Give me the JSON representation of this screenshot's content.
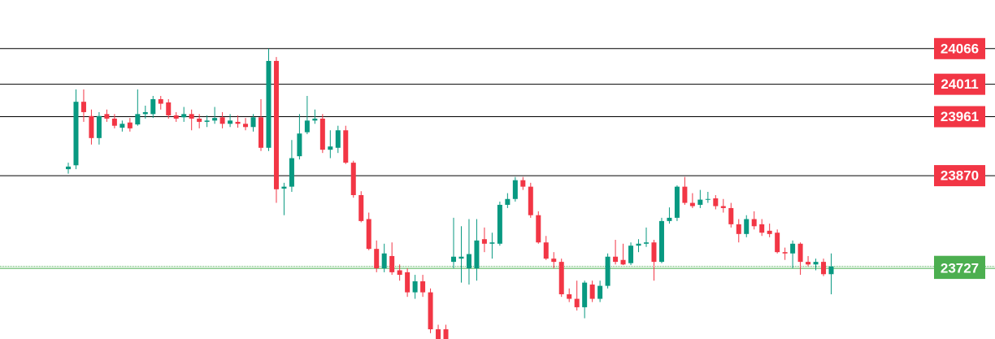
{
  "chart_data": {
    "type": "candlestick",
    "ylim": [
      23618,
      24141
    ],
    "up_color": "#089981",
    "down_color": "#f23645",
    "open": [
      23880,
      23886,
      23984,
      23962,
      23928,
      23965,
      23958,
      23944,
      23952,
      23949,
      23965,
      23965,
      23988,
      23983,
      23963,
      23960,
      23965,
      23958,
      23953,
      23955,
      23960,
      23950,
      23953,
      23950,
      23945,
      23960,
      23913,
      24047,
      23850,
      23853,
      23900,
      23937,
      23955,
      23958,
      23910,
      23913,
      23940,
      23890,
      23840,
      23803,
      23757,
      23727,
      23746,
      23724,
      23721,
      23690,
      23707,
      23690,
      23633,
      23633,
      23737,
      23742,
      23727,
      23727,
      23772,
      23765,
      23765,
      23825,
      23834,
      23863,
      23853,
      23809,
      23767,
      23742,
      23737,
      23687,
      23680,
      23667,
      23702,
      23680,
      23700,
      23745,
      23740,
      23735,
      23762,
      23765,
      23767,
      23737,
      23800,
      23805,
      23853,
      23828,
      23825,
      23833,
      23835,
      23823,
      23820,
      23795,
      23780,
      23803,
      23795,
      23785,
      23782,
      23752,
      23750,
      23765,
      23737,
      23733,
      23737,
      23718
    ],
    "high": [
      23890,
      24003,
      24003,
      23972,
      23968,
      23972,
      23965,
      23955,
      23959,
      24003,
      23978,
      23993,
      23993,
      23988,
      23968,
      23976,
      23972,
      23965,
      23963,
      23976,
      23968,
      23965,
      23963,
      23959,
      23965,
      23988,
      24066,
      24053,
      23859,
      23925,
      23965,
      23993,
      23972,
      23965,
      23940,
      23947,
      23947,
      23893,
      23846,
      23813,
      23770,
      23765,
      23767,
      23733,
      23727,
      23717,
      23717,
      23696,
      23640,
      23640,
      23805,
      23792,
      23803,
      23803,
      23790,
      23782,
      23830,
      23843,
      23868,
      23868,
      23859,
      23815,
      23777,
      23752,
      23742,
      23696,
      23708,
      23708,
      23708,
      23708,
      23750,
      23771,
      23765,
      23767,
      23772,
      23790,
      23771,
      23805,
      23821,
      23855,
      23868,
      23843,
      23848,
      23845,
      23840,
      23834,
      23828,
      23803,
      23809,
      23815,
      23803,
      23796,
      23787,
      23759,
      23770,
      23767,
      23746,
      23742,
      23742,
      23750
    ],
    "low": [
      23873,
      23880,
      23953,
      23918,
      23918,
      23953,
      23943,
      23938,
      23938,
      23947,
      23958,
      23959,
      23972,
      23958,
      23953,
      23953,
      23940,
      23943,
      23945,
      23950,
      23943,
      23945,
      23944,
      23940,
      23938,
      23908,
      23908,
      23828,
      23809,
      23845,
      23895,
      23934,
      23950,
      23905,
      23897,
      23905,
      23888,
      23836,
      23798,
      23755,
      23721,
      23721,
      23717,
      23708,
      23683,
      23680,
      23683,
      23627,
      23618,
      23618,
      23727,
      23705,
      23702,
      23708,
      23752,
      23742,
      23762,
      23820,
      23830,
      23848,
      23805,
      23765,
      23740,
      23727,
      23683,
      23675,
      23662,
      23650,
      23675,
      23675,
      23696,
      23733,
      23732,
      23732,
      23752,
      23760,
      23708,
      23735,
      23796,
      23800,
      23825,
      23820,
      23820,
      23828,
      23818,
      23813,
      23790,
      23767,
      23775,
      23787,
      23777,
      23775,
      23750,
      23740,
      23727,
      23717,
      23730,
      23724,
      23715,
      23687
    ],
    "close": [
      23884,
      23984,
      23968,
      23928,
      23962,
      23958,
      23947,
      23950,
      23943,
      23965,
      23968,
      23988,
      23981,
      23963,
      23958,
      23965,
      23958,
      23953,
      23955,
      23959,
      23950,
      23955,
      23950,
      23945,
      23960,
      23913,
      24047,
      23849,
      23853,
      23897,
      23935,
      23955,
      23958,
      23910,
      23915,
      23940,
      23890,
      23840,
      23800,
      23757,
      23727,
      23750,
      23721,
      23717,
      23690,
      23707,
      23690,
      23633,
      23618,
      23618,
      23745,
      23745,
      23749,
      23770,
      23765,
      23767,
      23825,
      23834,
      23863,
      23853,
      23809,
      23767,
      23742,
      23737,
      23687,
      23680,
      23667,
      23705,
      23680,
      23700,
      23745,
      23737,
      23733,
      23762,
      23765,
      23767,
      23737,
      23800,
      23805,
      23853,
      23828,
      23823,
      23833,
      23834,
      23823,
      23820,
      23795,
      23780,
      23803,
      23792,
      23782,
      23780,
      23752,
      23750,
      23765,
      23737,
      23733,
      23737,
      23718,
      23730
    ],
    "levels": [
      {
        "value": 24066,
        "color": "#f23645",
        "line": "#000000",
        "dash": "none"
      },
      {
        "value": 24011,
        "color": "#f23645",
        "line": "#000000",
        "dash": "none"
      },
      {
        "value": 23961,
        "color": "#f23645",
        "line": "#000000",
        "dash": "none"
      },
      {
        "value": 23870,
        "color": "#f23645",
        "line": "#000000",
        "dash": "none"
      },
      {
        "value": 23730,
        "color": "#4caf50",
        "line": "#4caf50",
        "dash": "1 1"
      },
      {
        "value": 23727,
        "color": "#4caf50",
        "line": "#4caf50",
        "dash": "none"
      }
    ]
  }
}
